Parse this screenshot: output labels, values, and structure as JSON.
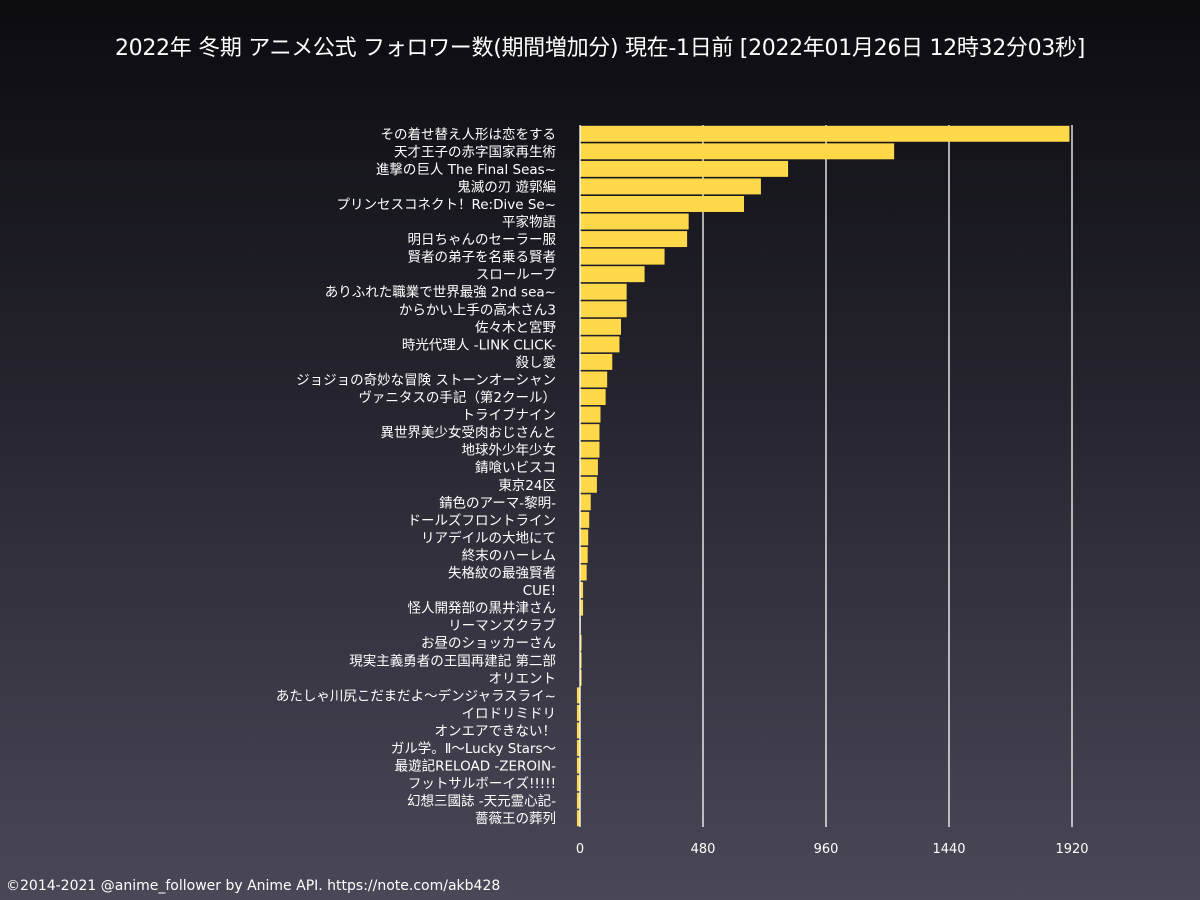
{
  "chart_data": {
    "type": "bar",
    "orientation": "horizontal",
    "title": "2022年 冬期 アニメ公式 フォロワー数(期間増加分) 現在-1日前 [2022年01月26日 12時32分03秒]",
    "xlim": [
      0,
      1920
    ],
    "x_ticks": [
      0,
      480,
      960,
      1440,
      1920
    ],
    "grid": "vertical",
    "bar_color": "#ffd94a",
    "categories": [
      "その着せ替え人形は恋をする",
      "天才王子の赤字国家再生術",
      "進撃の巨人 The Final Seas~",
      "鬼滅の刃 遊郭編",
      "プリンセスコネクト！Re:Dive Se~",
      "平家物語",
      "明日ちゃんのセーラー服",
      "賢者の弟子を名乗る賢者",
      "スローループ",
      "ありふれた職業で世界最強 2nd sea~",
      "からかい上手の高木さん3",
      "佐々木と宮野",
      "時光代理人 -LINK CLICK-",
      "殺し愛",
      "ジョジョの奇妙な冒険 ストーンオーシャン",
      "ヴァニタスの手記（第2クール）",
      "トライブナイン",
      "異世界美少女受肉おじさんと",
      "地球外少年少女",
      "錆喰いビスコ",
      "東京24区",
      "錆色のアーマ-黎明-",
      "ドールズフロントライン",
      "リアデイルの大地にて",
      "終末のハーレム",
      "失格紋の最強賢者",
      "CUE!",
      "怪人開発部の黒井津さん",
      "リーマンズクラブ",
      "お昼のショッカーさん",
      "現実主義勇者の王国再建記 第二部",
      "オリエント",
      "あたしゃ川尻こだまだよ～デンジャラスライ~",
      "イロドリミドリ",
      "オンエアできない！",
      "ガル学。Ⅱ～Lucky Stars～",
      "最遊記RELOAD -ZEROIN-",
      "フットサルボーイズ!!!!!",
      "幻想三國誌 -天元霊心記-",
      "薔薇王の葬列"
    ],
    "values": [
      1910,
      1226,
      812,
      706,
      640,
      424,
      418,
      330,
      252,
      182,
      182,
      160,
      154,
      126,
      106,
      100,
      80,
      76,
      76,
      70,
      66,
      42,
      36,
      32,
      30,
      26,
      12,
      12,
      2,
      6,
      6,
      6,
      -12,
      -12,
      -12,
      -12,
      -12,
      -12,
      -12,
      -12
    ]
  },
  "footer": {
    "credit": "©2014-2021 @anime_follower by Anime API. https://note.com/akb428"
  }
}
